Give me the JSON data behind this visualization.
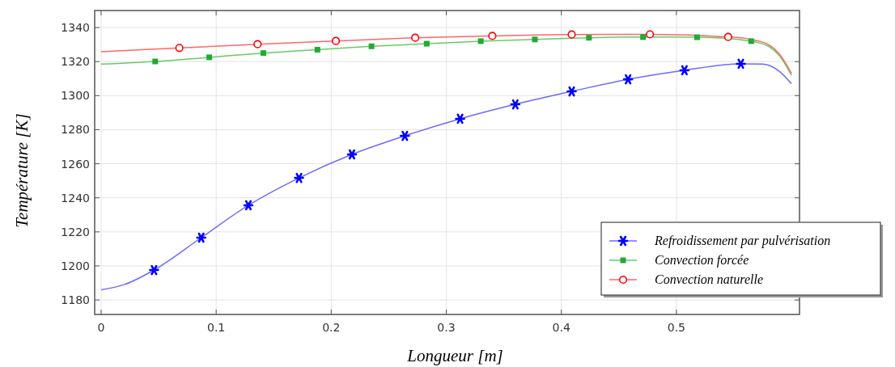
{
  "chart_data": {
    "type": "line",
    "xlabel": "Longueur [m]",
    "ylabel": "Température [K]",
    "xlim": [
      -0.0056,
      0.607
    ],
    "xticks": [
      0,
      0.1,
      0.2,
      0.3,
      0.4,
      0.5
    ],
    "ylim": [
      1171.5,
      1350
    ],
    "yticks": [
      1180,
      1200,
      1220,
      1240,
      1260,
      1280,
      1300,
      1320,
      1340
    ],
    "grid": true,
    "legend": "bottom right",
    "line_style": "solid",
    "series": [
      {
        "color": "#6b6bff",
        "x": [
          0,
          0.02,
          0.046,
          0.087,
          0.128,
          0.172,
          0.218,
          0.264,
          0.312,
          0.36,
          0.409,
          0.458,
          0.507,
          0.556,
          0.575,
          0.59,
          0.6
        ],
        "values": [
          1186,
          1189,
          1197.6,
          1216.6,
          1235.6,
          1251.7,
          1265.5,
          1276.4,
          1286.4,
          1294.9,
          1302.5,
          1309.6,
          1314.9,
          1318.7,
          1318.5,
          1314,
          1307
        ]
      },
      {
        "color": "#66cc66",
        "x": [
          0,
          0.047,
          0.094,
          0.141,
          0.188,
          0.235,
          0.283,
          0.33,
          0.377,
          0.424,
          0.471,
          0.518,
          0.565,
          0.58,
          0.59,
          0.6
        ],
        "values": [
          1318.5,
          1320.1,
          1322.5,
          1325,
          1327,
          1329,
          1330.5,
          1332,
          1333,
          1334,
          1334.4,
          1334.3,
          1332,
          1329,
          1323,
          1312
        ]
      },
      {
        "color": "#ff6666",
        "x": [
          0,
          0.068,
          0.136,
          0.204,
          0.273,
          0.34,
          0.409,
          0.477,
          0.545,
          0.565,
          0.58,
          0.59,
          0.6
        ],
        "values": [
          1325.8,
          1328,
          1330.2,
          1332.1,
          1334,
          1335.1,
          1335.9,
          1336,
          1334.5,
          1333,
          1330,
          1324,
          1313
        ]
      },
      {
        "type": "scatter",
        "name": "Refroidissement par pulvérisation",
        "color": "#0000ff",
        "marker": "cross",
        "x": [
          0.046,
          0.087,
          0.128,
          0.172,
          0.218,
          0.264,
          0.312,
          0.36,
          0.409,
          0.458,
          0.507,
          0.556
        ],
        "values": [
          1197.6,
          1216.6,
          1235.6,
          1251.7,
          1265.5,
          1276.4,
          1286.4,
          1294.9,
          1302.5,
          1309.6,
          1314.9,
          1318.7
        ]
      },
      {
        "type": "scatter",
        "name": "Convection forcée",
        "color": "#22aa33",
        "marker": "square",
        "x": [
          0.047,
          0.094,
          0.141,
          0.188,
          0.235,
          0.283,
          0.33,
          0.377,
          0.424,
          0.471,
          0.518,
          0.565
        ],
        "values": [
          1320.1,
          1322.5,
          1325,
          1327,
          1329,
          1330.5,
          1332,
          1333,
          1334,
          1334.4,
          1334.3,
          1332
        ]
      },
      {
        "type": "scatter",
        "name": "Convection naturelle",
        "color": "#ff0000",
        "marker": "circle",
        "x": [
          0.068,
          0.136,
          0.204,
          0.273,
          0.34,
          0.409,
          0.477,
          0.545
        ],
        "values": [
          1328,
          1330.2,
          1332.1,
          1334,
          1335.1,
          1335.9,
          1336,
          1334.5
        ]
      }
    ]
  }
}
